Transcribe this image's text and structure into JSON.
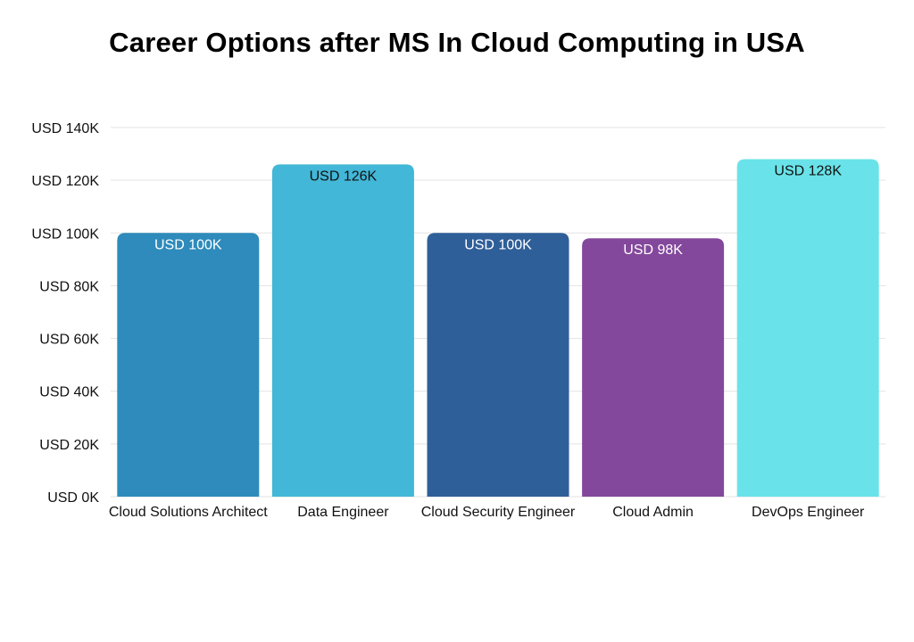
{
  "chart_data": {
    "type": "bar",
    "title": "Career Options after MS In Cloud Computing in USA",
    "categories": [
      "Cloud Solutions Architect",
      "Data Engineer",
      "Cloud Security Engineer",
      "Cloud Admin",
      "DevOps Engineer"
    ],
    "values": [
      100,
      126,
      100,
      98,
      128
    ],
    "data_labels": [
      "USD 100K",
      "USD 126K",
      "USD 100K",
      "USD 98K",
      "USD 128K"
    ],
    "bar_colors": [
      "#2e8bbb",
      "#42b7d7",
      "#2f5f99",
      "#83489b",
      "#69e3e9"
    ],
    "data_label_colors": [
      "#ffffff",
      "#111111",
      "#ffffff",
      "#ffffff",
      "#111111"
    ],
    "yticks": [
      0,
      20,
      40,
      60,
      80,
      100,
      120,
      140
    ],
    "ytick_labels": [
      "USD 0K",
      "USD 20K",
      "USD 40K",
      "USD 60K",
      "USD 80K",
      "USD 100K",
      "USD 120K",
      "USD 140K"
    ],
    "ylim": [
      0,
      140
    ],
    "xlabel": "",
    "ylabel": "",
    "grid": true,
    "legend": "none"
  }
}
